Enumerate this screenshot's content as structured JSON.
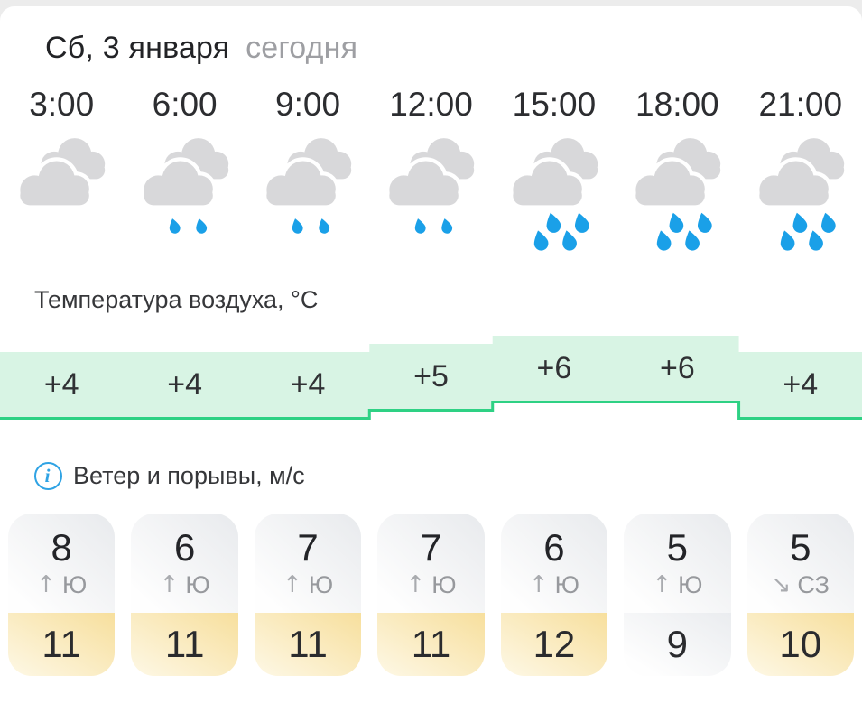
{
  "header": {
    "date": "Сб, 3 января",
    "today": "сегодня"
  },
  "sections": {
    "temperature_label": "Температура воздуха, °C",
    "wind_label": "Ветер и порывы, м/с",
    "info_icon_glyph": "i"
  },
  "columns": [
    {
      "time": "3:00",
      "condition": "cloudy",
      "condition_icon": "cloudy-icon",
      "temp_label": "+4",
      "temp": 4,
      "wind_speed": "8",
      "wind_arrow": "↑",
      "wind_dir": "Ю",
      "gust": "11",
      "gust_style": "yellow"
    },
    {
      "time": "6:00",
      "condition": "light-rain",
      "condition_icon": "cloudy-light-rain-icon",
      "temp_label": "+4",
      "temp": 4,
      "wind_speed": "6",
      "wind_arrow": "↑",
      "wind_dir": "Ю",
      "gust": "11",
      "gust_style": "yellow"
    },
    {
      "time": "9:00",
      "condition": "light-rain",
      "condition_icon": "cloudy-light-rain-icon",
      "temp_label": "+4",
      "temp": 4,
      "wind_speed": "7",
      "wind_arrow": "↑",
      "wind_dir": "Ю",
      "gust": "11",
      "gust_style": "yellow"
    },
    {
      "time": "12:00",
      "condition": "light-rain",
      "condition_icon": "cloudy-light-rain-icon",
      "temp_label": "+5",
      "temp": 5,
      "wind_speed": "7",
      "wind_arrow": "↑",
      "wind_dir": "Ю",
      "gust": "11",
      "gust_style": "yellow"
    },
    {
      "time": "15:00",
      "condition": "rain",
      "condition_icon": "cloudy-rain-icon",
      "temp_label": "+6",
      "temp": 6,
      "wind_speed": "6",
      "wind_arrow": "↑",
      "wind_dir": "Ю",
      "gust": "12",
      "gust_style": "yellow"
    },
    {
      "time": "18:00",
      "condition": "rain",
      "condition_icon": "cloudy-rain-icon",
      "temp_label": "+6",
      "temp": 6,
      "wind_speed": "5",
      "wind_arrow": "↑",
      "wind_dir": "Ю",
      "gust": "9",
      "gust_style": "gray"
    },
    {
      "time": "21:00",
      "condition": "rain",
      "condition_icon": "cloudy-rain-icon",
      "temp_label": "+4",
      "temp": 4,
      "wind_speed": "5",
      "wind_arrow": "↘",
      "wind_dir": "СЗ",
      "gust": "10",
      "gust_style": "yellow"
    }
  ],
  "colors": {
    "temp_fill": "#d8f4e4",
    "temp_line": "#2ed184",
    "rain_drop": "#1aa0e8",
    "cloud_gray": "#d8d8da",
    "info_blue": "#2fa3e4"
  },
  "chart_data": {
    "type": "area",
    "title": "Температура воздуха, °C",
    "x": [
      "3:00",
      "6:00",
      "9:00",
      "12:00",
      "15:00",
      "18:00",
      "21:00"
    ],
    "values": [
      4,
      4,
      4,
      5,
      6,
      6,
      4
    ],
    "ylabel": "°C",
    "style": "stepped-ribbon",
    "grid": false,
    "legend": false
  }
}
